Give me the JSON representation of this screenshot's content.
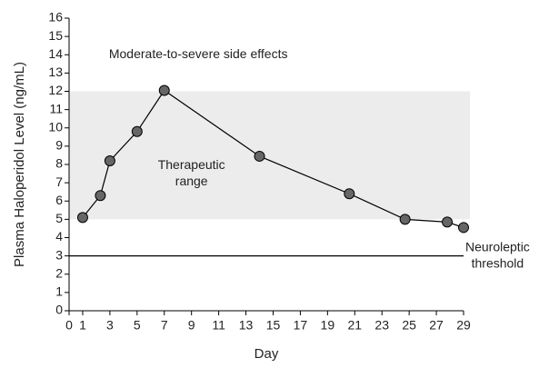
{
  "chart_data": {
    "type": "line",
    "x_label": "Day",
    "y_label": "Plasma Haloperidol Level (ng/mL)",
    "x": [
      1,
      2.3,
      3,
      5,
      7,
      14,
      20.6,
      24.7,
      27.8,
      29
    ],
    "values": [
      5.1,
      6.3,
      8.2,
      9.8,
      12.05,
      8.45,
      6.4,
      5.0,
      4.85,
      4.55
    ],
    "color": "#000000",
    "marker_color": "#666666",
    "xlim": [
      0,
      29
    ],
    "xticks": [
      0,
      1,
      3,
      5,
      7,
      9,
      11,
      13,
      15,
      17,
      19,
      21,
      23,
      25,
      27,
      29
    ],
    "ylim": [
      0,
      16
    ],
    "yticks": [
      0,
      1,
      2,
      3,
      4,
      5,
      6,
      7,
      8,
      9,
      10,
      11,
      12,
      13,
      14,
      15,
      16
    ],
    "grid": false,
    "therapeutic_range": [
      5,
      12
    ],
    "range_color": "#ececec",
    "threshold": 3,
    "annotations": [
      {
        "lines": [
          "Moderate-to-severe side effects"
        ],
        "x": 9.5,
        "y": 14
      },
      {
        "lines": [
          "Therapeutic",
          "range"
        ],
        "x": 9,
        "y": 7.5
      },
      {
        "lines": [
          "Neuroleptic",
          "threshold"
        ],
        "x": 31.5,
        "y": 3
      }
    ]
  }
}
